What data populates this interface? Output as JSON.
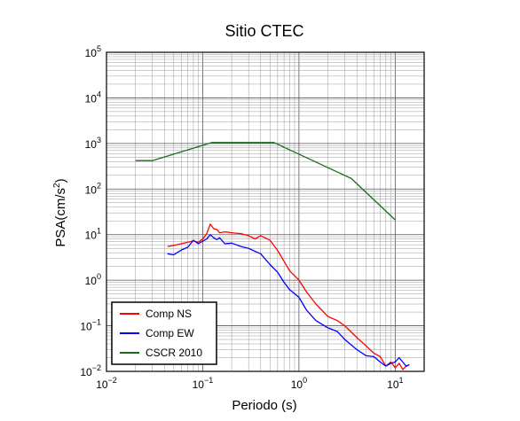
{
  "chart_data": {
    "type": "line",
    "title": "Sitio CTEC",
    "xlabel": "Periodo (s)",
    "ylabel_base": "PSA(cm/s",
    "ylabel_sup": "2",
    "ylabel_close": ")",
    "xscale": "log",
    "yscale": "log",
    "xlim": [
      0.01,
      20
    ],
    "ylim": [
      0.01,
      100000
    ],
    "grid": true,
    "legend_position": "bottom-left",
    "x_ticks": [
      {
        "value": 0.01,
        "base": "10",
        "exp": "−2"
      },
      {
        "value": 0.1,
        "base": "10",
        "exp": "−1"
      },
      {
        "value": 1,
        "base": "10",
        "exp": "0"
      },
      {
        "value": 10,
        "base": "10",
        "exp": "1"
      }
    ],
    "y_ticks": [
      {
        "value": 0.01,
        "base": "10",
        "exp": "−2"
      },
      {
        "value": 0.1,
        "base": "10",
        "exp": "−1"
      },
      {
        "value": 1,
        "base": "10",
        "exp": "0"
      },
      {
        "value": 10,
        "base": "10",
        "exp": "1"
      },
      {
        "value": 100,
        "base": "10",
        "exp": "2"
      },
      {
        "value": 1000,
        "base": "10",
        "exp": "3"
      },
      {
        "value": 10000,
        "base": "10",
        "exp": "4"
      },
      {
        "value": 100000,
        "base": "10",
        "exp": "5"
      }
    ],
    "series": [
      {
        "name": "Comp NS",
        "color": "#ff0000",
        "x": [
          0.043,
          0.05,
          0.06,
          0.07,
          0.08,
          0.09,
          0.1,
          0.11,
          0.12,
          0.13,
          0.14,
          0.15,
          0.17,
          0.2,
          0.25,
          0.3,
          0.35,
          0.4,
          0.5,
          0.6,
          0.7,
          0.8,
          1.0,
          1.2,
          1.5,
          2.0,
          2.5,
          3.0,
          4.0,
          5.0,
          6.0,
          7.0,
          8.0,
          9.0,
          10.0,
          11.0,
          12.0,
          13.0,
          14.0
        ],
        "y": [
          5.5,
          5.8,
          6.3,
          6.8,
          7.3,
          6.8,
          8.0,
          10.5,
          17.0,
          13.5,
          13.0,
          11.0,
          11.5,
          11.0,
          10.5,
          9.5,
          8.0,
          9.5,
          7.5,
          4.5,
          2.6,
          1.6,
          1.0,
          0.55,
          0.3,
          0.16,
          0.13,
          0.1,
          0.055,
          0.036,
          0.025,
          0.021,
          0.013,
          0.016,
          0.012,
          0.015,
          0.011,
          0.013,
          0.014
        ]
      },
      {
        "name": "Comp EW",
        "color": "#0000ff",
        "x": [
          0.043,
          0.05,
          0.06,
          0.07,
          0.08,
          0.09,
          0.1,
          0.11,
          0.12,
          0.13,
          0.14,
          0.15,
          0.17,
          0.2,
          0.25,
          0.3,
          0.35,
          0.4,
          0.5,
          0.6,
          0.7,
          0.8,
          1.0,
          1.2,
          1.5,
          2.0,
          2.5,
          3.0,
          4.0,
          5.0,
          6.0,
          7.0,
          8.0,
          9.0,
          10.0,
          11.0,
          12.0,
          13.0,
          14.0
        ],
        "y": [
          3.8,
          3.6,
          4.6,
          5.3,
          7.5,
          6.3,
          7.2,
          8.0,
          10.0,
          8.5,
          7.8,
          8.5,
          6.3,
          6.5,
          5.5,
          5.0,
          4.3,
          3.8,
          2.2,
          1.5,
          0.9,
          0.62,
          0.42,
          0.22,
          0.13,
          0.09,
          0.075,
          0.05,
          0.03,
          0.022,
          0.021,
          0.016,
          0.013,
          0.015,
          0.016,
          0.02,
          0.016,
          0.013,
          0.014
        ]
      },
      {
        "name": "CSCR 2010",
        "color": "#1a6b1a",
        "x": [
          0.02,
          0.03,
          0.125,
          0.55,
          3.5,
          10.0
        ],
        "y": [
          420,
          420,
          1050,
          1050,
          170,
          21
        ]
      }
    ]
  }
}
